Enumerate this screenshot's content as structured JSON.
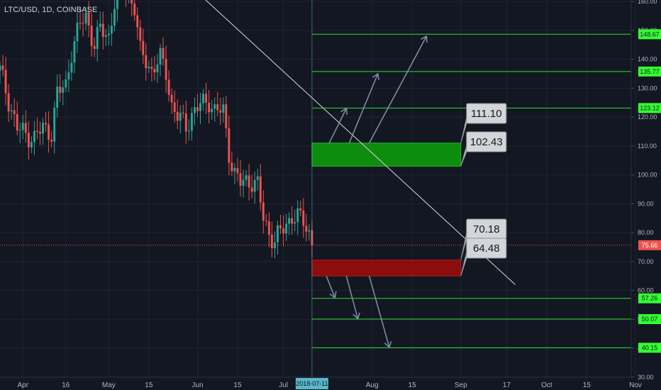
{
  "header": {
    "symbol_title": "LTC/USD, 1D, COINBASE"
  },
  "colors": {
    "background": "#131722",
    "grid": "#1f2433",
    "up_candle": "#26a69a",
    "down_candle": "#ef5350",
    "target_line": "#33dd33",
    "target_badge": "#33ff33",
    "buy_zone": "#0e8c0e",
    "sell_zone": "#8b0d0d",
    "arrow": "#7b95ab",
    "trendline": "#d8dae0",
    "price_line": "#ef5350",
    "crosshair": "#5ab6c8",
    "callout": "#d3d5d8"
  },
  "chart_data": {
    "type": "candlestick",
    "title": "LTC/USD, 1D, COINBASE",
    "y_axis": {
      "ylim": [
        27,
        162
      ],
      "ticks": [
        30,
        40,
        50,
        60,
        70,
        80,
        90,
        100,
        110,
        120,
        130,
        140,
        150,
        160
      ],
      "tick_labels": [
        "30.00",
        "40.00",
        "50.00",
        "60.00",
        "70.00",
        "80.00",
        "90.00",
        "100.00",
        "110.00",
        "120.00",
        "130.00",
        "140.00",
        "150.00",
        "160.00"
      ]
    },
    "x_axis": {
      "range": [
        "2018-03-24",
        "2018-11-02"
      ],
      "ticks": [
        {
          "date": "2018-04-01",
          "label": "Apr"
        },
        {
          "date": "2018-04-16",
          "label": "16"
        },
        {
          "date": "2018-05-01",
          "label": "May"
        },
        {
          "date": "2018-05-15",
          "label": "15"
        },
        {
          "date": "2018-06-01",
          "label": "Jun"
        },
        {
          "date": "2018-06-15",
          "label": "15"
        },
        {
          "date": "2018-07-01",
          "label": "Jul"
        },
        {
          "date": "2018-08-01",
          "label": "Aug"
        },
        {
          "date": "2018-08-15",
          "label": "15"
        },
        {
          "date": "2018-09-01",
          "label": "Sep"
        },
        {
          "date": "2018-09-17",
          "label": "17"
        },
        {
          "date": "2018-10-01",
          "label": "Oct"
        },
        {
          "date": "2018-10-15",
          "label": "15"
        },
        {
          "date": "2018-11-01",
          "label": "Nov"
        }
      ]
    },
    "close_path": [
      [
        "2018-03-24",
        136
      ],
      [
        "2018-03-27",
        126
      ],
      [
        "2018-03-30",
        116
      ],
      [
        "2018-04-02",
        114
      ],
      [
        "2018-04-05",
        113
      ],
      [
        "2018-04-08",
        116
      ],
      [
        "2018-04-11",
        115
      ],
      [
        "2018-04-13",
        128
      ],
      [
        "2018-04-16",
        131
      ],
      [
        "2018-04-18",
        143
      ],
      [
        "2018-04-21",
        152
      ],
      [
        "2018-04-23",
        155
      ],
      [
        "2018-04-26",
        145
      ],
      [
        "2018-04-28",
        150
      ],
      [
        "2018-05-01",
        148
      ],
      [
        "2018-05-03",
        160
      ],
      [
        "2018-05-05",
        168
      ],
      [
        "2018-05-08",
        162
      ],
      [
        "2018-05-10",
        158
      ],
      [
        "2018-05-12",
        142
      ],
      [
        "2018-05-14",
        140
      ],
      [
        "2018-05-16",
        136
      ],
      [
        "2018-05-19",
        140
      ],
      [
        "2018-05-21",
        136
      ],
      [
        "2018-05-23",
        124
      ],
      [
        "2018-05-25",
        120
      ],
      [
        "2018-05-28",
        117
      ],
      [
        "2018-05-30",
        121
      ],
      [
        "2018-06-02",
        124
      ],
      [
        "2018-06-05",
        126
      ],
      [
        "2018-06-07",
        122
      ],
      [
        "2018-06-10",
        122
      ],
      [
        "2018-06-12",
        108
      ],
      [
        "2018-06-14",
        100
      ],
      [
        "2018-06-16",
        97
      ],
      [
        "2018-06-18",
        98
      ],
      [
        "2018-06-20",
        98
      ],
      [
        "2018-06-22",
        96
      ],
      [
        "2018-06-24",
        85
      ],
      [
        "2018-06-26",
        80
      ],
      [
        "2018-06-28",
        77
      ],
      [
        "2018-06-30",
        80
      ],
      [
        "2018-07-02",
        83
      ],
      [
        "2018-07-04",
        86
      ],
      [
        "2018-07-06",
        85
      ],
      [
        "2018-07-08",
        84
      ],
      [
        "2018-07-10",
        80
      ],
      [
        "2018-07-11",
        75.66
      ]
    ],
    "last_price": {
      "value": 75.66,
      "label": "75.66"
    },
    "crosshair": {
      "date": "2018-07-11",
      "label": "2018-07-11"
    },
    "trendline": {
      "start": [
        "2018-05-08",
        185
      ],
      "end": [
        "2018-09-20",
        62
      ]
    },
    "target_levels": [
      {
        "value": 148.67,
        "label": "148.67"
      },
      {
        "value": 135.77,
        "label": "135.77"
      },
      {
        "value": 123.12,
        "label": "123.12"
      },
      {
        "value": 57.26,
        "label": "57.26"
      },
      {
        "value": 50.07,
        "label": "50.07"
      },
      {
        "value": 40.15,
        "label": "40.15"
      }
    ],
    "buy_zone": {
      "low": 103,
      "high": 111,
      "from": "2018-07-11",
      "to": "2018-09-01"
    },
    "sell_zone": {
      "low": 65,
      "high": 70.5,
      "from": "2018-07-11",
      "to": "2018-09-01"
    },
    "callouts": [
      {
        "text": "111.10",
        "value": 111.1
      },
      {
        "text": "102.43",
        "value": 102.43
      },
      {
        "text": "70.18",
        "value": 70.18
      },
      {
        "text": "64.48",
        "value": 64.48
      }
    ],
    "up_arrows": [
      {
        "from": [
          "2018-07-17",
          111
        ],
        "to": [
          "2018-07-23",
          123
        ]
      },
      {
        "from": [
          "2018-07-24",
          111
        ],
        "to": [
          "2018-08-03",
          135
        ]
      },
      {
        "from": [
          "2018-07-31",
          111
        ],
        "to": [
          "2018-08-20",
          148
        ]
      }
    ],
    "down_arrows": [
      {
        "from": [
          "2018-07-16",
          65
        ],
        "to": [
          "2018-07-19",
          57.5
        ]
      },
      {
        "from": [
          "2018-07-23",
          65
        ],
        "to": [
          "2018-07-27",
          50.2
        ]
      },
      {
        "from": [
          "2018-07-31",
          65
        ],
        "to": [
          "2018-08-07",
          40.3
        ]
      }
    ]
  }
}
